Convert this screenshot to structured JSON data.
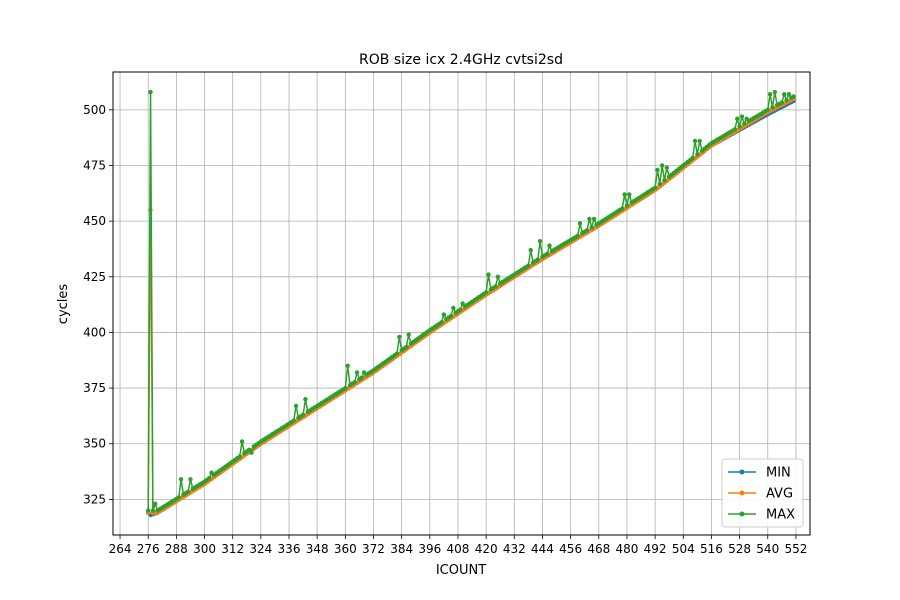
{
  "chart_data": {
    "type": "line",
    "title": "ROB size icx 2.4GHz cvtsi2sd",
    "xlabel": "ICOUNT",
    "ylabel": "cycles",
    "xlim": [
      261,
      558
    ],
    "ylim": [
      309,
      517
    ],
    "xticks": [
      264,
      276,
      288,
      300,
      312,
      324,
      336,
      348,
      360,
      372,
      384,
      396,
      408,
      420,
      432,
      444,
      456,
      468,
      480,
      492,
      504,
      516,
      528,
      540,
      552
    ],
    "yticks": [
      325,
      350,
      375,
      400,
      425,
      450,
      475,
      500
    ],
    "grid": true,
    "legend_position": "lower-right",
    "x": {
      "start": 276,
      "end": 551,
      "step": 1
    },
    "series": [
      {
        "name": "MIN",
        "color": "#1f77b4",
        "anchors": [
          [
            276,
            319
          ],
          [
            277,
            318
          ],
          [
            280,
            319
          ],
          [
            300,
            332
          ],
          [
            324,
            350
          ],
          [
            348,
            366
          ],
          [
            372,
            382
          ],
          [
            396,
            400
          ],
          [
            420,
            417
          ],
          [
            444,
            433
          ],
          [
            468,
            448
          ],
          [
            492,
            464
          ],
          [
            516,
            484
          ],
          [
            540,
            498
          ],
          [
            551,
            504
          ]
        ],
        "spikes": []
      },
      {
        "name": "AVG",
        "color": "#ff7f0e",
        "anchors": [
          [
            276,
            319
          ],
          [
            277,
            455
          ],
          [
            278,
            319
          ],
          [
            280,
            319
          ],
          [
            300,
            332
          ],
          [
            324,
            350
          ],
          [
            348,
            366
          ],
          [
            372,
            382
          ],
          [
            396,
            400
          ],
          [
            420,
            417
          ],
          [
            444,
            433
          ],
          [
            468,
            448
          ],
          [
            492,
            464
          ],
          [
            516,
            484
          ],
          [
            540,
            499
          ],
          [
            551,
            505
          ]
        ],
        "spikes": []
      },
      {
        "name": "MAX",
        "color": "#2ca02c",
        "anchors": [
          [
            276,
            320
          ],
          [
            277,
            508
          ],
          [
            278,
            320
          ],
          [
            280,
            320
          ],
          [
            300,
            333
          ],
          [
            324,
            351
          ],
          [
            348,
            367
          ],
          [
            372,
            383
          ],
          [
            396,
            401
          ],
          [
            420,
            418
          ],
          [
            444,
            434
          ],
          [
            468,
            449
          ],
          [
            492,
            465
          ],
          [
            516,
            485
          ],
          [
            540,
            500
          ],
          [
            551,
            506
          ]
        ],
        "spikes": [
          [
            279,
            323
          ],
          [
            290,
            334
          ],
          [
            294,
            334
          ],
          [
            303,
            337
          ],
          [
            316,
            351
          ],
          [
            320,
            346
          ],
          [
            339,
            367
          ],
          [
            343,
            370
          ],
          [
            361,
            385
          ],
          [
            365,
            382
          ],
          [
            368,
            382
          ],
          [
            383,
            398
          ],
          [
            387,
            399
          ],
          [
            402,
            408
          ],
          [
            406,
            411
          ],
          [
            410,
            413
          ],
          [
            421,
            426
          ],
          [
            425,
            425
          ],
          [
            439,
            437
          ],
          [
            443,
            441
          ],
          [
            447,
            439
          ],
          [
            460,
            449
          ],
          [
            464,
            451
          ],
          [
            466,
            451
          ],
          [
            479,
            462
          ],
          [
            481,
            462
          ],
          [
            493,
            473
          ],
          [
            495,
            475
          ],
          [
            497,
            474
          ],
          [
            509,
            486
          ],
          [
            511,
            486
          ],
          [
            527,
            496
          ],
          [
            529,
            497
          ],
          [
            531,
            496
          ],
          [
            541,
            507
          ],
          [
            543,
            508
          ],
          [
            547,
            507
          ],
          [
            549,
            507
          ]
        ]
      }
    ]
  }
}
